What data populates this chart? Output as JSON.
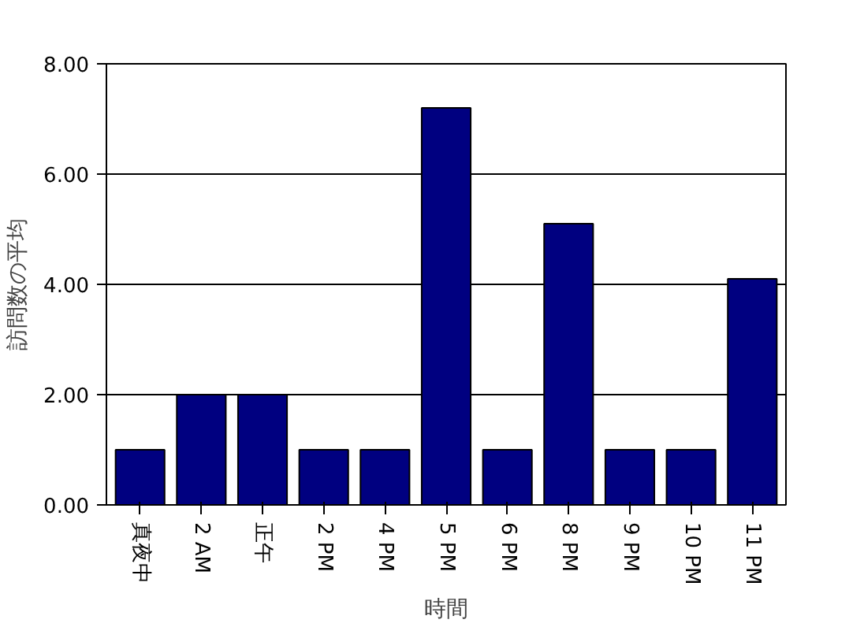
{
  "chart_data": {
    "type": "bar",
    "xlabel": "時間",
    "ylabel": "訪問数の平均",
    "categories": [
      "真夜中",
      "2 AM",
      "正午",
      "2 PM",
      "4 PM",
      "5 PM",
      "6 PM",
      "8 PM",
      "9 PM",
      "10 PM",
      "11 PM"
    ],
    "values": [
      1.0,
      2.0,
      2.0,
      1.0,
      1.0,
      7.2,
      1.0,
      5.1,
      1.0,
      1.0,
      4.1
    ],
    "color": "#000080",
    "ylim": [
      0,
      8
    ],
    "yticks": [
      {
        "value": 0,
        "label": "0.00"
      },
      {
        "value": 2,
        "label": "2.00"
      },
      {
        "value": 4,
        "label": "4.00"
      },
      {
        "value": 6,
        "label": "6.00"
      },
      {
        "value": 8,
        "label": "8.00"
      }
    ],
    "grid": "y"
  }
}
